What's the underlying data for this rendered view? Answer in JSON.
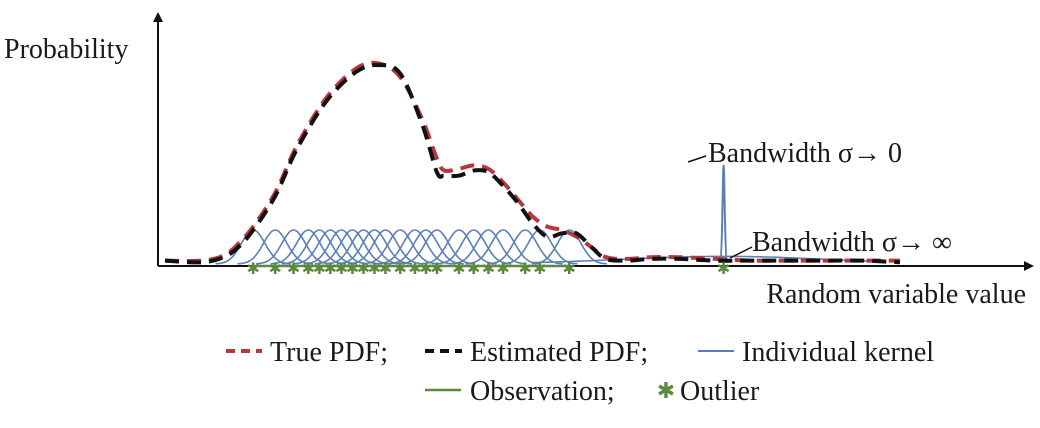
{
  "chart_data": {
    "type": "line",
    "ylabel": "Probability",
    "xlabel": "Random variable value",
    "xlim": [
      0,
      100
    ],
    "ylim": [
      0,
      1.2
    ],
    "colors": {
      "true_pdf": "#b5383a",
      "estimated_pdf": "#111111",
      "kernel": "#5b7fb8",
      "observation": "#5c8a3a",
      "outlier": "#5c8a3a",
      "axis": "#111111"
    },
    "annotations": {
      "narrow": "Bandwidth σ→ 0",
      "wide": "Bandwidth σ→ ∞"
    },
    "legend": {
      "row1": [
        {
          "key": "true_pdf",
          "label": "True PDF;"
        },
        {
          "key": "estimated_pdf",
          "label": "Estimated PDF;"
        },
        {
          "key": "kernel",
          "label": "Individual kernel"
        }
      ],
      "row2": [
        {
          "key": "observation",
          "label": "Observation;"
        },
        {
          "key": "outlier",
          "label": "Outlier"
        }
      ]
    },
    "true_pdf": {
      "x": [
        0,
        5,
        8,
        10,
        12,
        15,
        18,
        22,
        26,
        29,
        32,
        35,
        37,
        38,
        40,
        42,
        44,
        46,
        48,
        50,
        52,
        54,
        56,
        58,
        60,
        63,
        66,
        70,
        75,
        80,
        85,
        90,
        95,
        100
      ],
      "y": [
        0.02,
        0.02,
        0.05,
        0.12,
        0.22,
        0.42,
        0.7,
        0.98,
        1.15,
        1.18,
        1.1,
        0.85,
        0.62,
        0.55,
        0.56,
        0.58,
        0.56,
        0.48,
        0.38,
        0.28,
        0.22,
        0.2,
        0.16,
        0.1,
        0.04,
        0.03,
        0.04,
        0.04,
        0.03,
        0.02,
        0.02,
        0.02,
        0.02,
        0.02
      ]
    },
    "estimated_pdf": {
      "x": [
        0,
        5,
        8,
        10,
        12,
        15,
        18,
        22,
        26,
        29,
        32,
        35,
        37,
        38,
        40,
        42,
        44,
        46,
        48,
        50,
        52,
        54,
        56,
        58,
        60,
        63,
        66,
        70,
        75,
        80,
        85,
        90,
        95,
        100
      ],
      "y": [
        0.02,
        0.01,
        0.04,
        0.1,
        0.2,
        0.4,
        0.68,
        0.96,
        1.13,
        1.17,
        1.12,
        0.82,
        0.54,
        0.52,
        0.52,
        0.55,
        0.54,
        0.46,
        0.36,
        0.24,
        0.16,
        0.18,
        0.18,
        0.1,
        0.03,
        0.02,
        0.03,
        0.03,
        0.02,
        0.02,
        0.02,
        0.02,
        0.02,
        0.01
      ]
    },
    "kernels": {
      "centers": [
        12,
        15,
        17.5,
        19.5,
        21,
        22.5,
        24,
        25.5,
        27,
        28.5,
        30,
        32,
        34,
        35.5,
        37,
        40,
        42,
        44,
        46,
        49,
        51,
        55
      ],
      "sigma": 1.6,
      "height": 0.2
    },
    "narrow_kernel": {
      "center": 76,
      "height": 0.58
    },
    "wide_kernel": {
      "center": 76,
      "height": 0.045
    },
    "observations": [
      12,
      15,
      17.5,
      19.5,
      21,
      22.5,
      24,
      25.5,
      27,
      28.5,
      30,
      32,
      34,
      35.5,
      37,
      40,
      42,
      44,
      46,
      49,
      51,
      55
    ],
    "outliers": [
      76
    ]
  }
}
